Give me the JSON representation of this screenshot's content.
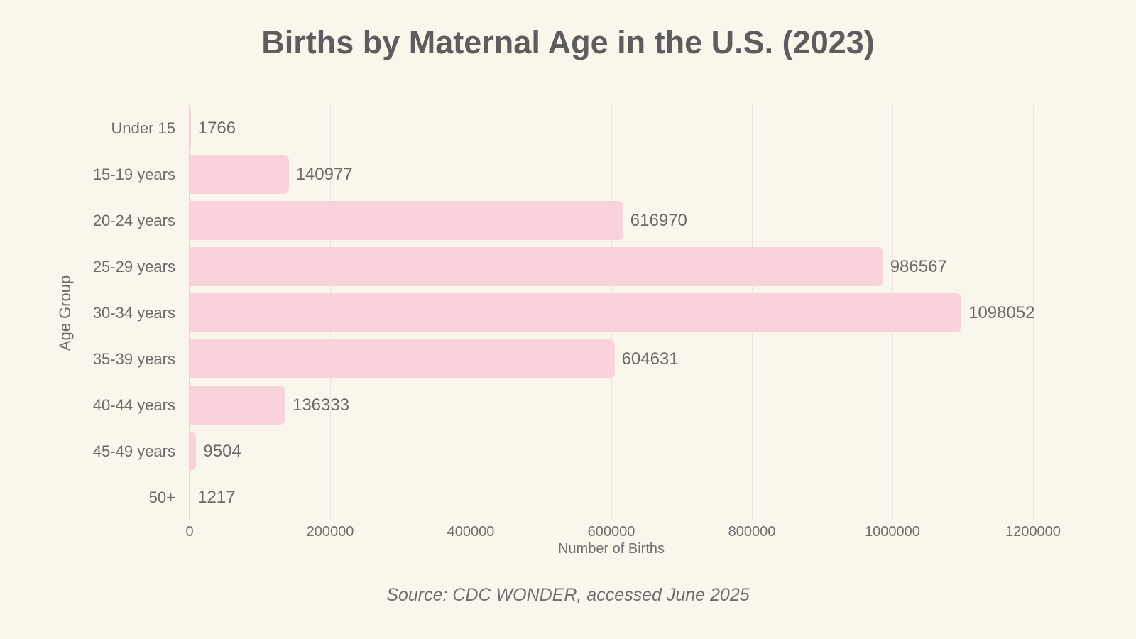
{
  "title": "Births by Maternal Age in the U.S. (2023)",
  "source": "Source: CDC WONDER, accessed June 2025",
  "chart_data": {
    "type": "bar",
    "orientation": "horizontal",
    "title": "Births by Maternal Age in the U.S. (2023)",
    "categories": [
      "Under 15",
      "15-19 years",
      "20-24 years",
      "25-29 years",
      "30-34 years",
      "35-39 years",
      "40-44 years",
      "45-49 years",
      "50+"
    ],
    "values": [
      1766,
      140977,
      616970,
      986567,
      1098052,
      604631,
      136333,
      9504,
      1217
    ],
    "xlabel": "Number of Births",
    "ylabel": "Age Group",
    "xticks": [
      0,
      200000,
      400000,
      600000,
      800000,
      1000000,
      1200000
    ],
    "xlim": [
      0,
      1240000
    ],
    "grid": true,
    "legend": "none",
    "annotation": "value labels at bar ends",
    "colors": {
      "background": "#FBF6EC",
      "bar": "#FAD2DA",
      "gridline": "#E9E6DE",
      "zero_line": "#F6CBD4",
      "title_text": "#5D5D5D",
      "axis_text": "#6B6B6B"
    }
  }
}
